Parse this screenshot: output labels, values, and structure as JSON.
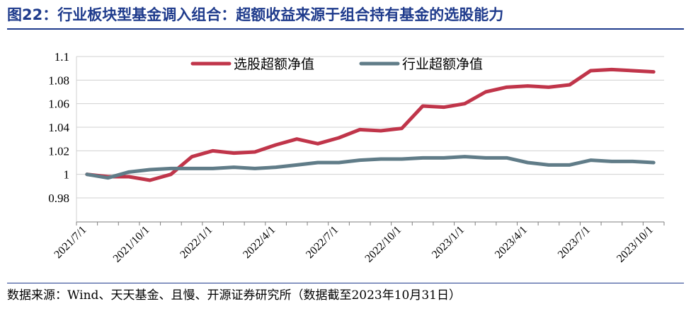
{
  "header": {
    "title": "图22：行业板块型基金调入组合：超额收益来源于组合持有基金的选股能力"
  },
  "footer": {
    "source": "数据来源：Wind、天天基金、且慢、开源证券研究所（数据截至2023年10月31日）"
  },
  "chart_data": {
    "type": "line",
    "x": [
      "2021/7/1",
      "2021/8/1",
      "2021/9/1",
      "2021/10/1",
      "2021/11/1",
      "2021/12/1",
      "2022/1/1",
      "2022/2/1",
      "2022/3/1",
      "2022/4/1",
      "2022/5/1",
      "2022/6/1",
      "2022/7/1",
      "2022/8/1",
      "2022/9/1",
      "2022/10/1",
      "2022/11/1",
      "2022/12/1",
      "2023/1/1",
      "2023/2/1",
      "2023/3/1",
      "2023/4/1",
      "2023/5/1",
      "2023/6/1",
      "2023/7/1",
      "2023/8/1",
      "2023/9/1",
      "2023/10/1"
    ],
    "xticks": [
      "2021/7/1",
      "2021/10/1",
      "2022/1/1",
      "2022/4/1",
      "2022/7/1",
      "2022/10/1",
      "2023/1/1",
      "2023/4/1",
      "2023/7/1",
      "2023/10/1"
    ],
    "series": [
      {
        "name": "选股超额净值",
        "color": "#c0354a",
        "values": [
          1.0,
          0.998,
          0.998,
          0.995,
          1.0,
          1.015,
          1.02,
          1.018,
          1.019,
          1.025,
          1.03,
          1.026,
          1.031,
          1.038,
          1.037,
          1.039,
          1.058,
          1.057,
          1.06,
          1.07,
          1.074,
          1.075,
          1.074,
          1.076,
          1.088,
          1.089,
          1.088,
          1.087
        ]
      },
      {
        "name": "行业超额净值",
        "color": "#607c88",
        "values": [
          1.0,
          0.997,
          1.002,
          1.004,
          1.005,
          1.005,
          1.005,
          1.006,
          1.005,
          1.006,
          1.008,
          1.01,
          1.01,
          1.012,
          1.013,
          1.013,
          1.014,
          1.014,
          1.015,
          1.014,
          1.014,
          1.01,
          1.008,
          1.008,
          1.012,
          1.011,
          1.011,
          1.01
        ]
      }
    ],
    "ylim": [
      0.98,
      1.1
    ],
    "yticks": [
      "0.98",
      "1",
      "1.02",
      "1.04",
      "1.06",
      "1.08",
      "1.1"
    ],
    "grid": true,
    "legend_position": "top-center"
  }
}
